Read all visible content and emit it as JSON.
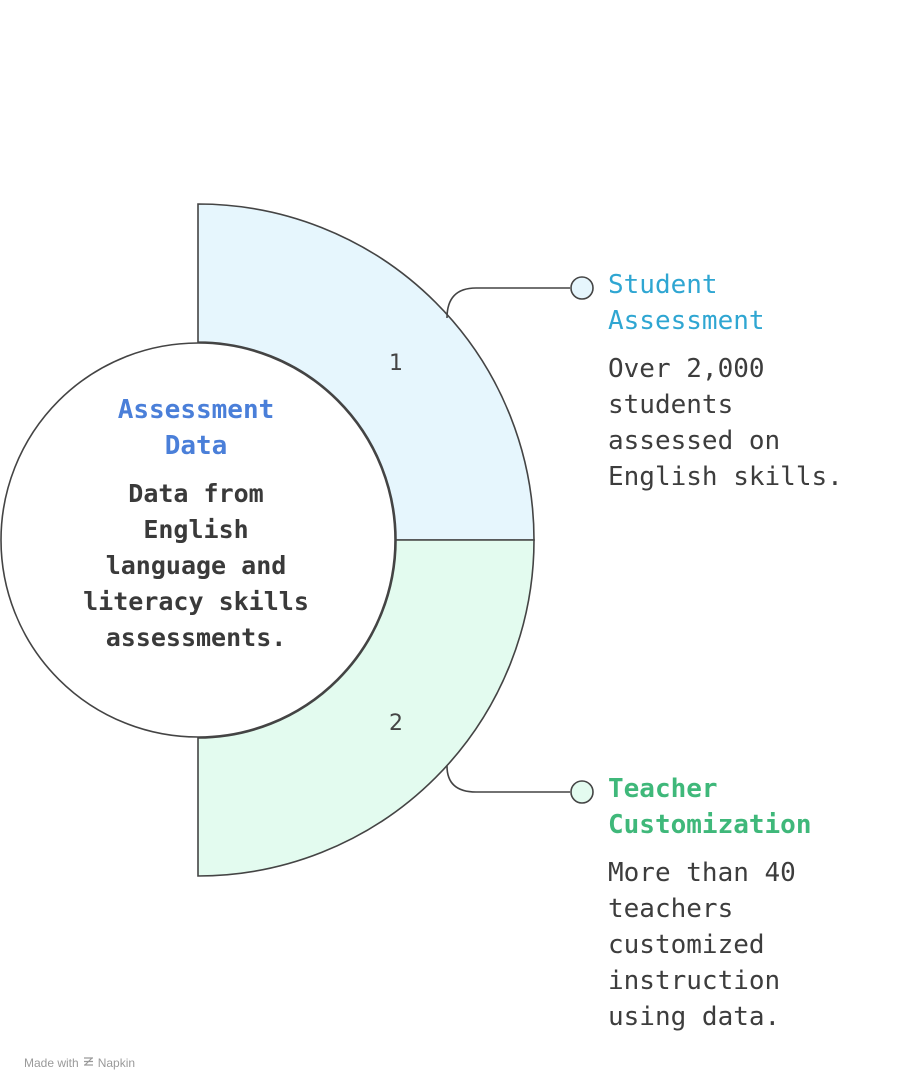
{
  "center": {
    "title": "Assessment Data",
    "description": "Data from English language and literacy skills assessments."
  },
  "segments": [
    {
      "number": "1",
      "title": "Student Assessment",
      "description": "Over 2,000 students assessed on English skills.",
      "fill_color": "#e6f6fd",
      "title_color": "#2fa6d2"
    },
    {
      "number": "2",
      "title": "Teacher Customization",
      "description": "More than 40 teachers customized instruction using data.",
      "fill_color": "#e3fbef",
      "title_color": "#3fb87a"
    }
  ],
  "footer": {
    "made_with": "Made with",
    "brand": "Napkin",
    "icon": "napkin-logo-icon"
  }
}
